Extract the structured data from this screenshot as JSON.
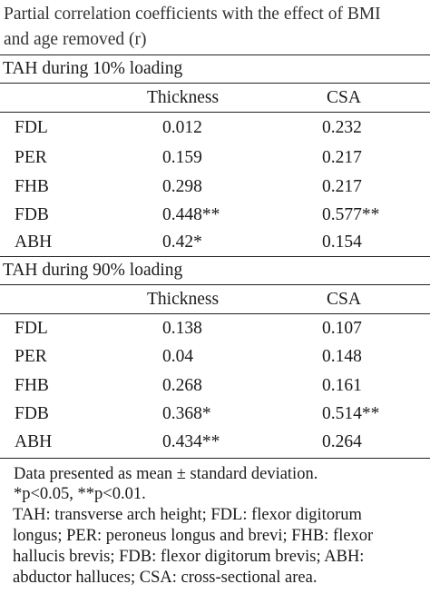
{
  "title_lines": [
    "Partial correlation coefficients with the effect of BMI",
    "and age removed (r)"
  ],
  "columns": [
    "Thickness",
    "CSA"
  ],
  "sections": [
    {
      "label": "TAH during 10% loading",
      "rows": [
        {
          "name": "FDL",
          "thickness": "0.012",
          "csa": "0.232"
        },
        {
          "name": "PER",
          "thickness": "0.159",
          "csa": "0.217"
        },
        {
          "name": "FHB",
          "thickness": "0.298",
          "csa": "0.217"
        },
        {
          "name": "FDB",
          "thickness": "0.448**",
          "csa": "0.577**"
        },
        {
          "name": "ABH",
          "thickness": "0.42*",
          "csa": "0.154"
        }
      ]
    },
    {
      "label": "TAH during 90% loading",
      "rows": [
        {
          "name": "FDL",
          "thickness": "0.138",
          "csa": "0.107"
        },
        {
          "name": "PER",
          "thickness": "0.04",
          "csa": "0.148"
        },
        {
          "name": "FHB",
          "thickness": "0.268",
          "csa": "0.161"
        },
        {
          "name": "FDB",
          "thickness": "0.368*",
          "csa": "0.514**"
        },
        {
          "name": "ABH",
          "thickness": "0.434**",
          "csa": "0.264"
        }
      ]
    }
  ],
  "footnotes": {
    "line1": "Data presented as mean ± standard deviation.",
    "line2": "*p<0.05, **p<0.01.",
    "abbrev_lines": [
      "TAH: transverse arch height; FDL: flexor digitorum",
      "longus; PER: peroneus longus and brevi; FHB: flexor",
      "hallucis brevis; FDB: flexor digitorum brevis; ABH:",
      "abductor halluces; CSA: cross-sectional area."
    ]
  }
}
